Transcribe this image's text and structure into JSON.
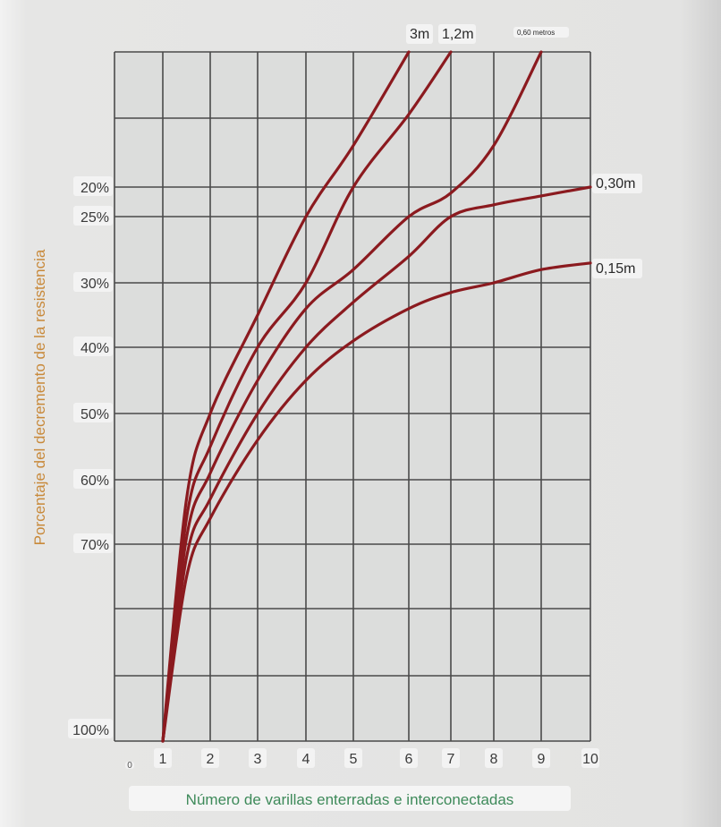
{
  "chart_data": {
    "type": "line",
    "xlabel": "Número de varillas enterradas e interconectadas",
    "ylabel": "Porcentaje del decremento de la resistencia",
    "x_origin_label": "0",
    "x_ticks": [
      1,
      2,
      3,
      4,
      5,
      6,
      7,
      8,
      9,
      10
    ],
    "y_ticks": [
      "20%",
      "25%",
      "30%",
      "40%",
      "50%",
      "60%",
      "70%",
      "100%"
    ],
    "grid": true,
    "series": [
      {
        "name": "3m",
        "color": "#8b1a1f",
        "points": [
          [
            1,
            100
          ],
          [
            1.5,
            63
          ],
          [
            2,
            50
          ],
          [
            3,
            35
          ],
          [
            4,
            25
          ],
          [
            5,
            16
          ],
          [
            6,
            7
          ]
        ]
      },
      {
        "name": "1,2m",
        "color": "#8b1a1f",
        "points": [
          [
            1,
            100
          ],
          [
            1.5,
            66
          ],
          [
            2,
            55
          ],
          [
            3,
            40
          ],
          [
            4,
            30
          ],
          [
            5,
            20
          ],
          [
            6,
            13
          ],
          [
            7,
            7
          ]
        ]
      },
      {
        "name": "0,60 metros",
        "color": "#8b1a1f",
        "points": [
          [
            1,
            100
          ],
          [
            1.5,
            69
          ],
          [
            2,
            59
          ],
          [
            3,
            45
          ],
          [
            4,
            34
          ],
          [
            5,
            29
          ],
          [
            6,
            25
          ],
          [
            7,
            21
          ],
          [
            8,
            16
          ],
          [
            9,
            7
          ]
        ]
      },
      {
        "name": "0,30m",
        "color": "#8b1a1f",
        "points": [
          [
            1,
            100
          ],
          [
            1.5,
            72
          ],
          [
            2,
            63
          ],
          [
            3,
            50
          ],
          [
            4,
            40
          ],
          [
            5,
            33
          ],
          [
            6,
            28
          ],
          [
            7,
            25
          ],
          [
            8,
            23
          ],
          [
            9,
            21.5
          ],
          [
            10,
            20
          ]
        ]
      },
      {
        "name": "0,15m",
        "color": "#8b1a1f",
        "points": [
          [
            1,
            100
          ],
          [
            1.5,
            75
          ],
          [
            2,
            66
          ],
          [
            3,
            54
          ],
          [
            4,
            45
          ],
          [
            5,
            39
          ],
          [
            6,
            34
          ],
          [
            7,
            31.5
          ],
          [
            8,
            30
          ],
          [
            9,
            29
          ],
          [
            10,
            28.5
          ]
        ]
      }
    ]
  }
}
